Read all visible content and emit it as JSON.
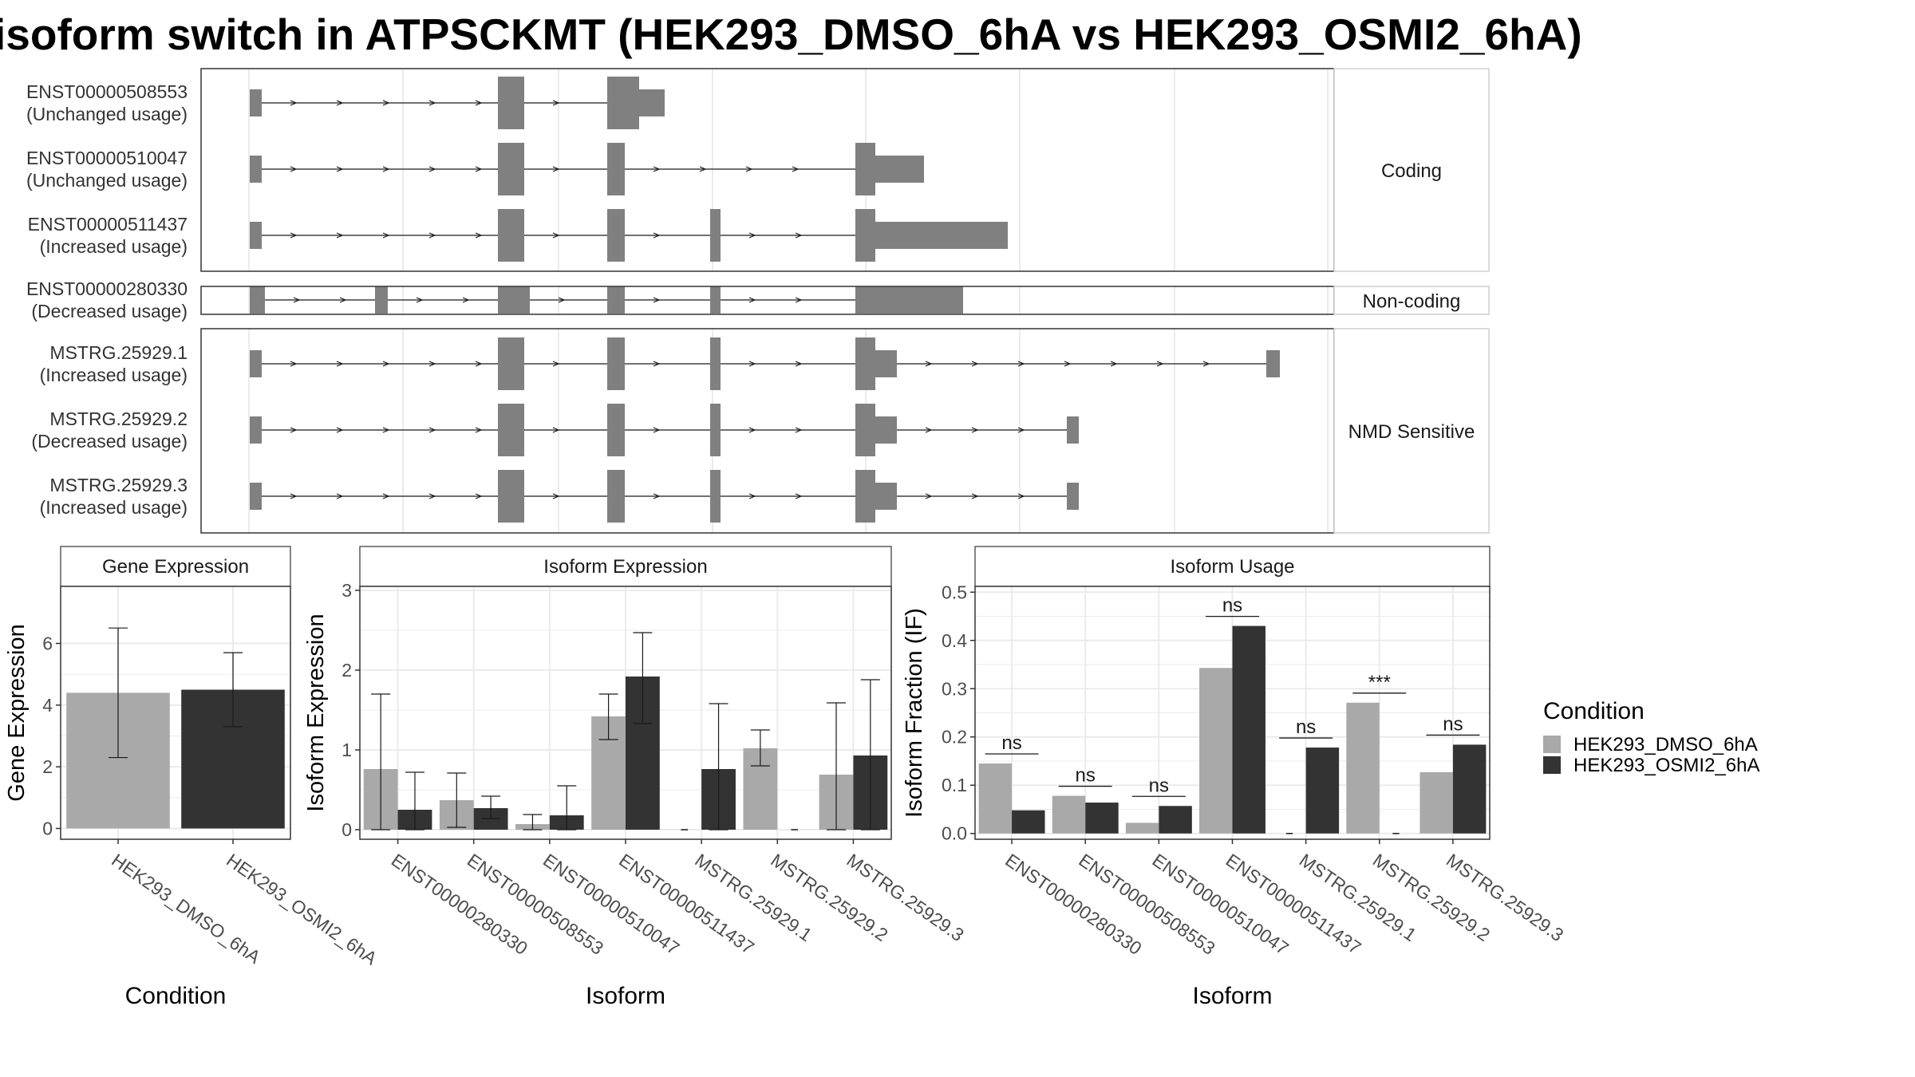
{
  "title": "isoform switch in ATPSCKMT (HEK293_DMSO_6hA vs HEK293_OSMI2_6hA)",
  "colors": {
    "exon": "#808080",
    "condition_1": "#a9a9a9",
    "condition_2": "#333333",
    "grid": "#ebebeb"
  },
  "structure": {
    "panels": [
      {
        "strip": "Coding",
        "transcripts": [
          {
            "id": "ENST00000508553",
            "usage": "(Unchanged usage)"
          },
          {
            "id": "ENST00000510047",
            "usage": "(Unchanged usage)"
          },
          {
            "id": "ENST00000511437",
            "usage": "(Increased usage)"
          }
        ]
      },
      {
        "strip": "Non-coding",
        "transcripts": [
          {
            "id": "ENST00000280330",
            "usage": "(Decreased usage)"
          }
        ]
      },
      {
        "strip": "NMD Sensitive",
        "transcripts": [
          {
            "id": "MSTRG.25929.1",
            "usage": "(Increased usage)"
          },
          {
            "id": "MSTRG.25929.2",
            "usage": "(Decreased usage)"
          },
          {
            "id": "MSTRG.25929.3",
            "usage": "(Increased usage)"
          }
        ]
      }
    ]
  },
  "chart_data": [
    {
      "type": "bar",
      "title": "Gene Expression",
      "xlabel": "Condition",
      "ylabel": "Gene Expression",
      "categories": [
        "HEK293_DMSO_6hA",
        "HEK293_OSMI2_6hA"
      ],
      "values": [
        4.4,
        4.5
      ],
      "ci_low": [
        2.3,
        3.3
      ],
      "ci_high": [
        6.5,
        5.7
      ],
      "yticks": [
        0,
        2,
        4,
        6
      ],
      "ylim": [
        -0.35,
        7.85
      ],
      "grid": true
    },
    {
      "type": "bar",
      "title": "Isoform Expression",
      "xlabel": "Isoform",
      "ylabel": "Isoform Expression",
      "categories": [
        "ENST00000280330",
        "ENST00000508553",
        "ENST00000510047",
        "ENST00000511437",
        "MSTRG.25929.1",
        "MSTRG.25929.2",
        "MSTRG.25929.3"
      ],
      "series": [
        {
          "name": "HEK293_DMSO_6hA",
          "values": [
            0.76,
            0.37,
            0.07,
            1.42,
            0,
            1.02,
            0.69
          ],
          "ci_low": [
            0,
            0.03,
            0,
            1.13,
            0,
            0.8,
            0
          ],
          "ci_high": [
            1.7,
            0.71,
            0.19,
            1.7,
            0,
            1.25,
            1.59
          ]
        },
        {
          "name": "HEK293_OSMI2_6hA",
          "values": [
            0.25,
            0.27,
            0.18,
            1.92,
            0.76,
            0,
            0.93
          ],
          "ci_low": [
            0,
            0.14,
            0,
            1.33,
            0,
            0,
            0
          ],
          "ci_high": [
            0.72,
            0.42,
            0.55,
            2.47,
            1.58,
            0,
            1.88
          ]
        }
      ],
      "yticks": [
        0,
        1,
        2,
        3
      ],
      "ylim": [
        -0.12,
        3.05
      ],
      "grid": true
    },
    {
      "type": "bar",
      "title": "Isoform Usage",
      "xlabel": "Isoform",
      "ylabel": "Isoform Fraction (IF)",
      "categories": [
        "ENST00000280330",
        "ENST00000508553",
        "ENST00000510047",
        "ENST00000511437",
        "MSTRG.25929.1",
        "MSTRG.25929.2",
        "MSTRG.25929.3"
      ],
      "series": [
        {
          "name": "HEK293_DMSO_6hA",
          "values": [
            0.145,
            0.078,
            0.022,
            0.343,
            0,
            0.271,
            0.127
          ]
        },
        {
          "name": "HEK293_OSMI2_6hA",
          "values": [
            0.048,
            0.064,
            0.057,
            0.43,
            0.178,
            0,
            0.184
          ]
        }
      ],
      "significance": [
        "ns",
        "ns",
        "ns",
        "ns",
        "ns",
        "***",
        "ns"
      ],
      "yticks": [
        0.0,
        0.1,
        0.2,
        0.3,
        0.4,
        0.5
      ],
      "ylim": [
        -0.012,
        0.512
      ],
      "grid": true
    }
  ],
  "legend": {
    "title": "Condition",
    "items": [
      "HEK293_DMSO_6hA",
      "HEK293_OSMI2_6hA"
    ],
    "placement": "right"
  }
}
